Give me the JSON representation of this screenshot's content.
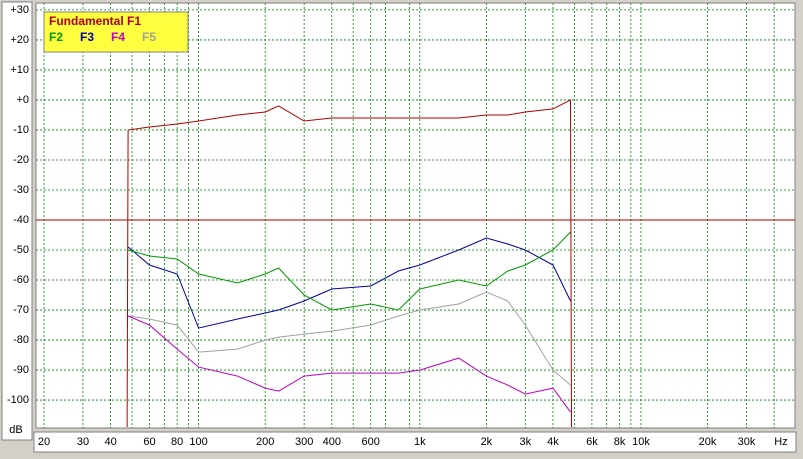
{
  "chart_data": {
    "type": "line",
    "x": [
      47.5,
      48,
      60,
      80,
      100,
      150,
      200,
      230,
      300,
      400,
      600,
      800,
      1000,
      1500,
      2000,
      2500,
      3000,
      4000,
      4800,
      4850
    ],
    "series": [
      {
        "name": "Fundamental F1",
        "color": "#b00000",
        "values": [
          -109,
          -10,
          -9,
          -8,
          -7,
          -5,
          -4,
          -2,
          -7,
          -6,
          -6,
          -6,
          -6,
          -6,
          -5,
          -5,
          -4,
          -3,
          0,
          -109
        ]
      },
      {
        "name": "F2",
        "color": "#009900",
        "values": [
          null,
          -50,
          -52,
          -53,
          -58,
          -61,
          -58,
          -56,
          -65,
          -70,
          -68,
          -70,
          -63,
          -60,
          -62,
          -57,
          -55,
          -50,
          -44,
          null
        ]
      },
      {
        "name": "F3",
        "color": "#000099",
        "values": [
          null,
          -49,
          -55,
          -58,
          -76,
          -73,
          -71,
          -70,
          -67,
          -63,
          -62,
          -57,
          -55,
          -50,
          -46,
          -48,
          -50,
          -55,
          -67,
          null
        ]
      },
      {
        "name": "F4",
        "color": "#c000c0",
        "values": [
          null,
          -72,
          -75,
          -83,
          -89,
          -92,
          -96,
          -97,
          -92,
          -91,
          -91,
          -91,
          -90,
          -86,
          -92,
          -95,
          -98,
          -96,
          -104,
          null
        ]
      },
      {
        "name": "F5",
        "color": "#a0a0a0",
        "values": [
          null,
          -72,
          -73,
          -75,
          -84,
          -83,
          -80,
          -79,
          -78,
          -77,
          -75,
          -72,
          -70,
          -68,
          -64,
          -67,
          -75,
          -90,
          -95,
          null
        ]
      }
    ],
    "reference_level": -40,
    "log_x": true,
    "grid": true,
    "xlim": [
      18.4,
      49700
    ],
    "ylim": [
      -109.3,
      32.3
    ],
    "yticks": [
      {
        "value": 30,
        "label": "+30"
      },
      {
        "value": 20,
        "label": "+20"
      },
      {
        "value": 10,
        "label": "+10"
      },
      {
        "value": 0,
        "label": "+0"
      },
      -10,
      -20,
      -30,
      -40,
      -50,
      -60,
      -70,
      -80,
      -90,
      -100
    ],
    "xticks": [
      20,
      30,
      40,
      60,
      80,
      100,
      200,
      300,
      400,
      600,
      {
        "value": 1000,
        "label": "1k"
      },
      {
        "value": 2000,
        "label": "2k"
      },
      {
        "value": 3000,
        "label": "3k"
      },
      {
        "value": 4000,
        "label": "4k"
      },
      {
        "value": 6000,
        "label": "6k"
      },
      {
        "value": 8000,
        "label": "8k"
      },
      {
        "value": 10000,
        "label": "10k"
      },
      {
        "value": 20000,
        "label": "20k"
      },
      {
        "value": 30000,
        "label": "30k"
      }
    ],
    "xminor": [
      50,
      70,
      90,
      500,
      700,
      900,
      5000,
      7000,
      9000,
      40000
    ],
    "xlabel": "Hz",
    "ylabel": "dB",
    "legend": "top-left"
  }
}
